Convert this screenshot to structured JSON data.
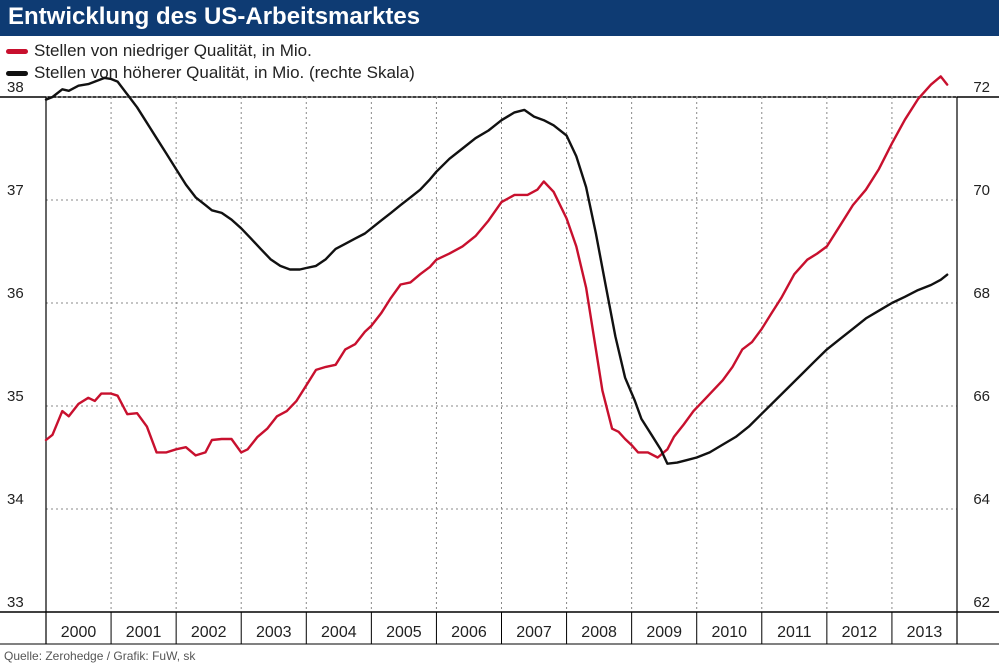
{
  "header": {
    "title": "Entwicklung des US-Arbeitsmarktes"
  },
  "legend": [
    {
      "label": "Stellen von niedriger Qualität, in Mio.",
      "color": "#c8102e"
    },
    {
      "label": "Stellen von höherer Qualität, in Mio. (rechte Skala)",
      "color": "#111111"
    }
  ],
  "footer": {
    "source": "Quelle: Zerohedge / Grafik: FuW, sk"
  },
  "colors": {
    "title_bg": "#0e3b73",
    "low_quality": "#c8102e",
    "high_quality": "#111111",
    "grid": "#999999"
  },
  "chart_data": {
    "type": "line",
    "title": "Entwicklung des US-Arbeitsmarktes",
    "xlabel": "",
    "ylabel": "",
    "categories": [
      "2000",
      "2001",
      "2002",
      "2003",
      "2004",
      "2005",
      "2006",
      "2007",
      "2008",
      "2009",
      "2010",
      "2011",
      "2012",
      "2013"
    ],
    "xlim": [
      2000,
      2014
    ],
    "ylim_left": [
      33,
      38
    ],
    "ylim_right": [
      62,
      72
    ],
    "yticks_left": [
      33,
      34,
      35,
      36,
      37,
      38
    ],
    "yticks_right": [
      62,
      64,
      66,
      68,
      70,
      72
    ],
    "series": [
      {
        "name": "Stellen von niedriger Qualität, in Mio.",
        "axis": "left",
        "color": "#c8102e",
        "x": [
          2000.0,
          2000.1,
          2000.25,
          2000.35,
          2000.5,
          2000.65,
          2000.75,
          2000.85,
          2001.0,
          2001.1,
          2001.25,
          2001.4,
          2001.55,
          2001.7,
          2001.85,
          2002.0,
          2002.15,
          2002.3,
          2002.45,
          2002.55,
          2002.7,
          2002.85,
          2003.0,
          2003.1,
          2003.25,
          2003.4,
          2003.55,
          2003.7,
          2003.85,
          2004.0,
          2004.15,
          2004.3,
          2004.45,
          2004.6,
          2004.75,
          2004.9,
          2005.0,
          2005.15,
          2005.3,
          2005.45,
          2005.6,
          2005.75,
          2005.9,
          2006.0,
          2006.2,
          2006.4,
          2006.6,
          2006.8,
          2007.0,
          2007.2,
          2007.4,
          2007.55,
          2007.65,
          2007.8,
          2008.0,
          2008.15,
          2008.3,
          2008.45,
          2008.55,
          2008.7,
          2008.8,
          2008.9,
          2009.0,
          2009.1,
          2009.25,
          2009.4,
          2009.55,
          2009.65,
          2009.8,
          2009.95,
          2010.1,
          2010.25,
          2010.4,
          2010.55,
          2010.7,
          2010.85,
          2011.0,
          2011.15,
          2011.3,
          2011.5,
          2011.7,
          2011.85,
          2012.0,
          2012.2,
          2012.4,
          2012.6,
          2012.8,
          2013.0,
          2013.2,
          2013.4,
          2013.6,
          2013.75,
          2013.85
        ],
        "values": [
          34.67,
          34.72,
          34.95,
          34.9,
          35.02,
          35.08,
          35.05,
          35.12,
          35.12,
          35.1,
          34.92,
          34.93,
          34.8,
          34.55,
          34.55,
          34.58,
          34.6,
          34.52,
          34.55,
          34.67,
          34.68,
          34.68,
          34.55,
          34.58,
          34.7,
          34.78,
          34.9,
          34.95,
          35.05,
          35.2,
          35.35,
          35.38,
          35.4,
          35.55,
          35.6,
          35.72,
          35.78,
          35.9,
          36.05,
          36.18,
          36.2,
          36.28,
          36.35,
          36.42,
          36.48,
          36.55,
          36.65,
          36.8,
          36.98,
          37.05,
          37.05,
          37.1,
          37.18,
          37.08,
          36.82,
          36.55,
          36.15,
          35.55,
          35.15,
          34.78,
          34.75,
          34.68,
          34.62,
          34.55,
          34.55,
          34.5,
          34.58,
          34.7,
          34.82,
          34.95,
          35.05,
          35.15,
          35.25,
          35.38,
          35.55,
          35.62,
          35.75,
          35.9,
          36.05,
          36.28,
          36.42,
          36.48,
          36.55,
          36.75,
          36.95,
          37.1,
          37.3,
          37.55,
          37.78,
          37.98,
          38.12,
          38.2,
          38.12
        ],
        "note_x_range": "approx. 2000.0–2013.85 (x in years)"
      },
      {
        "name": "Stellen von höherer Qualität, in Mio. (rechte Skala)",
        "axis": "right",
        "color": "#111111",
        "x": [
          2000.0,
          2000.1,
          2000.25,
          2000.35,
          2000.5,
          2000.65,
          2000.75,
          2000.9,
          2001.0,
          2001.1,
          2001.25,
          2001.4,
          2001.55,
          2001.7,
          2001.85,
          2002.0,
          2002.15,
          2002.3,
          2002.45,
          2002.55,
          2002.7,
          2002.85,
          2003.0,
          2003.15,
          2003.3,
          2003.45,
          2003.6,
          2003.75,
          2003.9,
          2004.0,
          2004.15,
          2004.3,
          2004.45,
          2004.6,
          2004.75,
          2004.9,
          2005.0,
          2005.15,
          2005.3,
          2005.45,
          2005.6,
          2005.75,
          2005.9,
          2006.0,
          2006.2,
          2006.4,
          2006.6,
          2006.8,
          2007.0,
          2007.2,
          2007.35,
          2007.5,
          2007.65,
          2007.8,
          2008.0,
          2008.15,
          2008.3,
          2008.45,
          2008.6,
          2008.75,
          2008.9,
          2009.05,
          2009.15,
          2009.3,
          2009.45,
          2009.55,
          2009.7,
          2009.85,
          2010.0,
          2010.2,
          2010.4,
          2010.6,
          2010.8,
          2011.0,
          2011.2,
          2011.4,
          2011.6,
          2011.8,
          2012.0,
          2012.2,
          2012.4,
          2012.6,
          2012.8,
          2013.0,
          2013.2,
          2013.4,
          2013.6,
          2013.75,
          2013.85
        ],
        "values": [
          71.95,
          72.0,
          72.15,
          72.12,
          72.22,
          72.25,
          72.3,
          72.37,
          72.35,
          72.3,
          72.05,
          71.8,
          71.5,
          71.2,
          70.9,
          70.6,
          70.3,
          70.05,
          69.9,
          69.8,
          69.75,
          69.62,
          69.45,
          69.25,
          69.05,
          68.85,
          68.72,
          68.65,
          68.65,
          68.68,
          68.72,
          68.85,
          69.05,
          69.15,
          69.25,
          69.35,
          69.45,
          69.6,
          69.75,
          69.9,
          70.05,
          70.2,
          70.4,
          70.55,
          70.8,
          71.0,
          71.2,
          71.35,
          71.55,
          71.7,
          71.75,
          71.62,
          71.55,
          71.45,
          71.25,
          70.85,
          70.25,
          69.35,
          68.35,
          67.35,
          66.55,
          66.1,
          65.75,
          65.45,
          65.15,
          64.88,
          64.9,
          64.95,
          65.0,
          65.1,
          65.25,
          65.4,
          65.6,
          65.85,
          66.1,
          66.35,
          66.6,
          66.85,
          67.1,
          67.3,
          67.5,
          67.7,
          67.85,
          68.0,
          68.12,
          68.25,
          68.35,
          68.45,
          68.55
        ],
        "note_x_range": "approx. 2000.0–2013.85 (x in years)"
      }
    ]
  }
}
